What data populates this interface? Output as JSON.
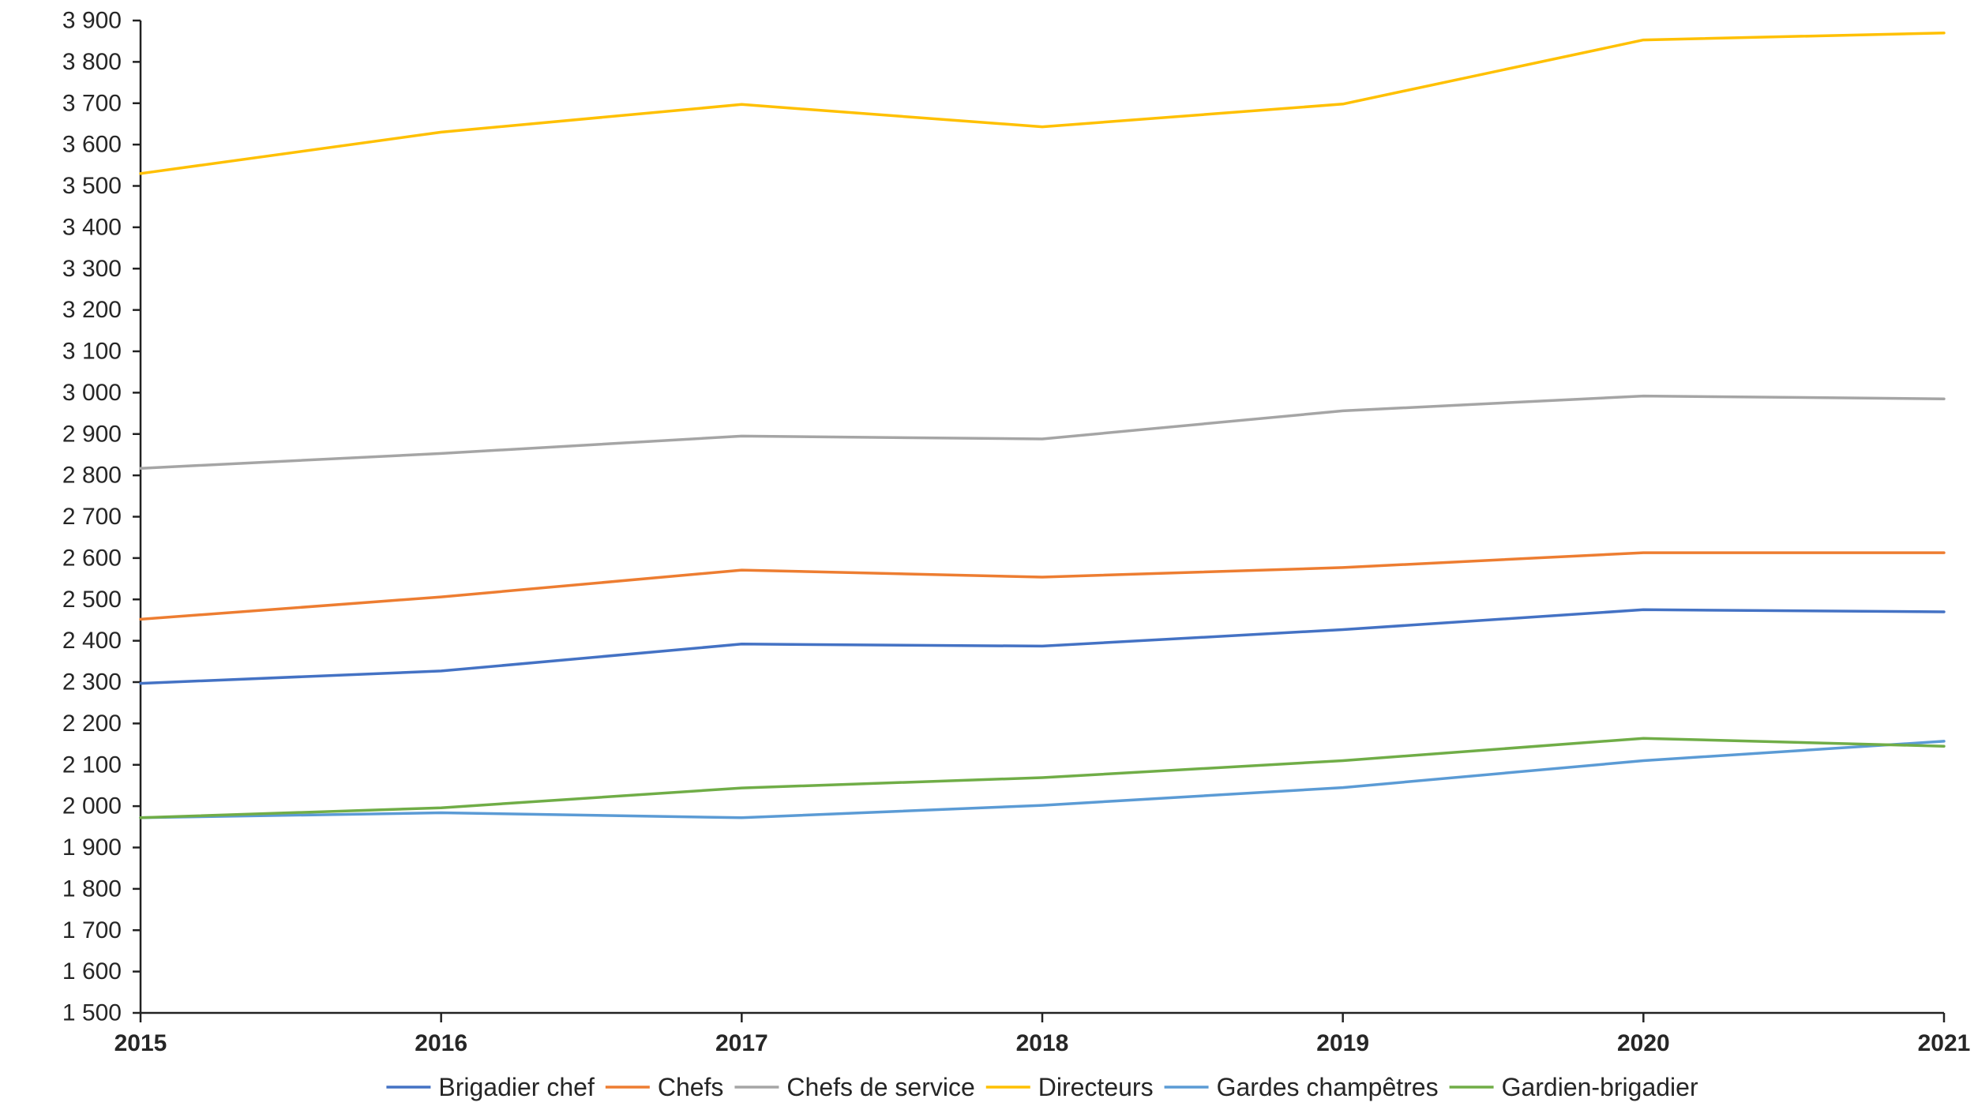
{
  "chart_data": {
    "type": "line",
    "title": "",
    "xlabel": "",
    "ylabel": "",
    "x": [
      "2015",
      "2016",
      "2017",
      "2018",
      "2019",
      "2020",
      "2021"
    ],
    "ylim": [
      1500,
      3900
    ],
    "yticks": [
      {
        "value": 1500,
        "label": "1 500"
      },
      {
        "value": 1600,
        "label": "1 600"
      },
      {
        "value": 1700,
        "label": "1 700"
      },
      {
        "value": 1800,
        "label": "1 800"
      },
      {
        "value": 1900,
        "label": "1 900"
      },
      {
        "value": 2000,
        "label": "2 000"
      },
      {
        "value": 2100,
        "label": "2 100"
      },
      {
        "value": 2200,
        "label": "2 200"
      },
      {
        "value": 2300,
        "label": "2 300"
      },
      {
        "value": 2400,
        "label": "2 400"
      },
      {
        "value": 2500,
        "label": "2 500"
      },
      {
        "value": 2600,
        "label": "2 600"
      },
      {
        "value": 2700,
        "label": "2 700"
      },
      {
        "value": 2800,
        "label": "2 800"
      },
      {
        "value": 2900,
        "label": "2 900"
      },
      {
        "value": 3000,
        "label": "3 000"
      },
      {
        "value": 3100,
        "label": "3 100"
      },
      {
        "value": 3200,
        "label": "3 200"
      },
      {
        "value": 3300,
        "label": "3 300"
      },
      {
        "value": 3400,
        "label": "3 400"
      },
      {
        "value": 3500,
        "label": "3 500"
      },
      {
        "value": 3600,
        "label": "3 600"
      },
      {
        "value": 3700,
        "label": "3 700"
      },
      {
        "value": 3800,
        "label": "3 800"
      },
      {
        "value": 3900,
        "label": "3 900"
      }
    ],
    "grid": false,
    "legend_position": "bottom",
    "series": [
      {
        "name": "Brigadier chef",
        "color": "#4472C4",
        "values": [
          2297,
          2327,
          2392,
          2387,
          2427,
          2475,
          2470
        ]
      },
      {
        "name": "Chefs",
        "color": "#ED7D31",
        "values": [
          2452,
          2506,
          2571,
          2554,
          2577,
          2613,
          2613
        ]
      },
      {
        "name": "Chefs de service",
        "color": "#A5A5A5",
        "values": [
          2817,
          2853,
          2895,
          2888,
          2956,
          2992,
          2985
        ]
      },
      {
        "name": "Directeurs",
        "color": "#FFC000",
        "values": [
          3530,
          3630,
          3697,
          3643,
          3698,
          3853,
          3870
        ]
      },
      {
        "name": "Gardes champêtres",
        "color": "#5B9BD5",
        "values": [
          1972,
          1984,
          1972,
          2002,
          2045,
          2110,
          2157
        ]
      },
      {
        "name": "Gardien-brigadier",
        "color": "#70AD47",
        "values": [
          1972,
          1996,
          2044,
          2069,
          2110,
          2164,
          2145
        ]
      }
    ]
  }
}
